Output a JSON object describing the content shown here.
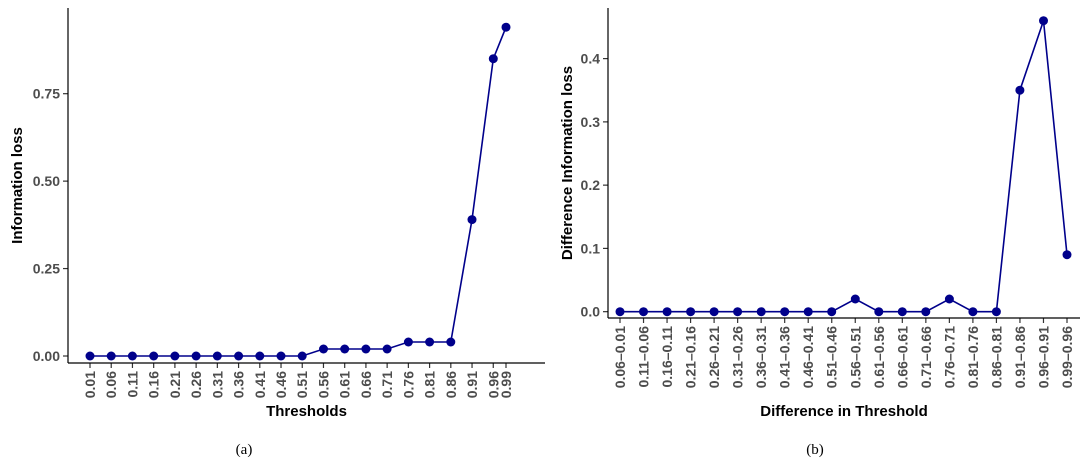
{
  "colors": {
    "series": "#00008B",
    "axis": "#000000",
    "tick_text": "#4d4d4d"
  },
  "chart_data": [
    {
      "type": "line",
      "caption": "(a)",
      "xlabel": "Thresholds",
      "ylabel": "Information loss",
      "categories": [
        "0.01",
        "0.06",
        "0.11",
        "0.16",
        "0.21",
        "0.26",
        "0.31",
        "0.36",
        "0.41",
        "0.46",
        "0.51",
        "0.56",
        "0.61",
        "0.66",
        "0.71",
        "0.76",
        "0.81",
        "0.86",
        "0.91",
        "0.96",
        "0.99"
      ],
      "x": [
        0.01,
        0.06,
        0.11,
        0.16,
        0.21,
        0.26,
        0.31,
        0.36,
        0.41,
        0.46,
        0.51,
        0.56,
        0.61,
        0.66,
        0.71,
        0.76,
        0.81,
        0.86,
        0.91,
        0.96,
        0.99
      ],
      "values": [
        0,
        0,
        0,
        0,
        0,
        0,
        0,
        0,
        0,
        0,
        0,
        0.02,
        0.02,
        0.02,
        0.02,
        0.04,
        0.04,
        0.04,
        0.39,
        0.85,
        0.94
      ],
      "yticks": [
        0.0,
        0.25,
        0.5,
        0.75
      ],
      "ytick_labels": [
        "0.00",
        "0.25",
        "0.50",
        "0.75"
      ],
      "ylim": [
        -0.02,
        0.995
      ],
      "xlim": [
        -0.02,
        1.02
      ],
      "grid": false,
      "legend": "none"
    },
    {
      "type": "line",
      "caption": "(b)",
      "xlabel": "Difference in Threshold",
      "ylabel": "Difference Information loss",
      "categories": [
        "0.06–0.01",
        "0.11–0.06",
        "0.16–0.11",
        "0.21–0.16",
        "0.26–0.21",
        "0.31–0.26",
        "0.36–0.31",
        "0.41–0.36",
        "0.46–0.41",
        "0.51–0.46",
        "0.56–0.51",
        "0.61–0.56",
        "0.66–0.61",
        "0.71–0.66",
        "0.76–0.71",
        "0.81–0.76",
        "0.86–0.81",
        "0.91–0.86",
        "0.96–0.91",
        "0.99–0.96"
      ],
      "values": [
        0,
        0,
        0,
        0,
        0,
        0,
        0,
        0,
        0,
        0,
        0.02,
        0,
        0,
        0,
        0.02,
        0,
        0,
        0.35,
        0.46,
        0.09
      ],
      "yticks": [
        0.0,
        0.1,
        0.2,
        0.3,
        0.4
      ],
      "ytick_labels": [
        "0.0",
        "0.1",
        "0.2",
        "0.3",
        "0.4"
      ],
      "ylim": [
        -0.01,
        0.48
      ],
      "grid": false,
      "legend": "none"
    }
  ]
}
